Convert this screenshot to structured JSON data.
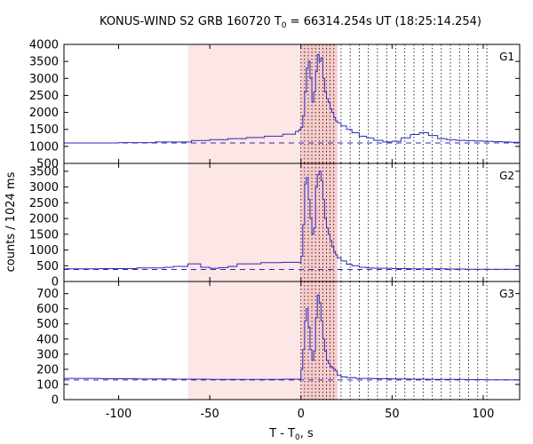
{
  "chart_data": {
    "type": "line",
    "title": {
      "prefix": "KONUS-WIND S2 GRB 160720 T",
      "sub": "0",
      "suffix": " = 66314.254s UT (18:25:14.254)"
    },
    "xlabel": {
      "prefix": "T - T",
      "sub": "0",
      "suffix": ", s"
    },
    "ylabel": "counts / 1024 ms",
    "xlim": [
      -130,
      120
    ],
    "xticks": [
      -100,
      -50,
      0,
      50,
      100
    ],
    "shaded_intervals": [
      {
        "from": -62,
        "to": 0,
        "color": "#fde6e6"
      },
      {
        "from": 0,
        "to": 20,
        "color": "#f9cccc"
      }
    ],
    "vlines": [
      0,
      2,
      4,
      6,
      8,
      10,
      12,
      14,
      16,
      18,
      22,
      27,
      32,
      37,
      42,
      47,
      52,
      57,
      62,
      67,
      72,
      77,
      82,
      87,
      92,
      97,
      102
    ],
    "panels": [
      {
        "label": "G1",
        "ylim": [
          500,
          4000
        ],
        "yticks": [
          500,
          1000,
          1500,
          2000,
          2500,
          3000,
          3500,
          4000
        ],
        "background": 1100,
        "x": [
          -130,
          -100,
          -80,
          -60,
          -50,
          -40,
          -30,
          -20,
          -10,
          -3,
          -1,
          0,
          1,
          2,
          3,
          4,
          5,
          6,
          7,
          8,
          9,
          10,
          11,
          12,
          13,
          14,
          15,
          16,
          17,
          18,
          19,
          20,
          22,
          25,
          28,
          32,
          36,
          40,
          45,
          50,
          55,
          60,
          65,
          70,
          75,
          80,
          85,
          90,
          95,
          100,
          105,
          110,
          115,
          120
        ],
        "values": [
          1100,
          1110,
          1130,
          1170,
          1200,
          1230,
          1260,
          1300,
          1360,
          1440,
          1500,
          1560,
          1900,
          2600,
          3300,
          3500,
          3000,
          2300,
          2600,
          3200,
          3700,
          3500,
          3600,
          3000,
          2600,
          2400,
          2300,
          2100,
          2000,
          1850,
          1750,
          1700,
          1600,
          1500,
          1400,
          1300,
          1250,
          1180,
          1130,
          1150,
          1250,
          1350,
          1400,
          1320,
          1230,
          1200,
          1180,
          1170,
          1160,
          1150,
          1140,
          1130,
          1120,
          1110
        ]
      },
      {
        "label": "G2",
        "ylim": [
          0,
          3750
        ],
        "yticks": [
          0,
          500,
          1000,
          1500,
          2000,
          2500,
          3000,
          3500
        ],
        "background": 380,
        "x": [
          -130,
          -110,
          -90,
          -75,
          -70,
          -62,
          -55,
          -50,
          -45,
          -40,
          -35,
          -22,
          -10,
          -1,
          0,
          1,
          2,
          3,
          4,
          5,
          6,
          7,
          8,
          9,
          10,
          11,
          12,
          13,
          14,
          15,
          16,
          17,
          18,
          19,
          20,
          22,
          25,
          28,
          32,
          36,
          40,
          50,
          60,
          70,
          80,
          90,
          100,
          110,
          120
        ],
        "values": [
          400,
          410,
          430,
          450,
          480,
          560,
          450,
          420,
          440,
          480,
          560,
          600,
          610,
          600,
          800,
          1800,
          3100,
          3300,
          2600,
          2000,
          1500,
          1700,
          3000,
          3400,
          3500,
          3200,
          2600,
          2000,
          1700,
          1500,
          1300,
          1100,
          950,
          850,
          750,
          650,
          550,
          500,
          450,
          430,
          420,
          410,
          400,
          400,
          395,
          390,
          390,
          385,
          380
        ]
      },
      {
        "label": "G3",
        "ylim": [
          0,
          780
        ],
        "yticks": [
          0,
          100,
          200,
          300,
          400,
          500,
          600,
          700
        ],
        "background": 130,
        "x": [
          -130,
          -110,
          -90,
          -70,
          -50,
          -30,
          -10,
          -1,
          0,
          1,
          2,
          3,
          4,
          5,
          6,
          7,
          8,
          9,
          10,
          11,
          12,
          13,
          14,
          15,
          16,
          17,
          18,
          19,
          20,
          22,
          25,
          30,
          40,
          50,
          60,
          70,
          80,
          90,
          100,
          110,
          120
        ],
        "values": [
          140,
          138,
          136,
          135,
          134,
          134,
          135,
          135,
          200,
          330,
          520,
          600,
          480,
          330,
          260,
          320,
          540,
          690,
          640,
          520,
          400,
          320,
          260,
          240,
          220,
          210,
          200,
          190,
          160,
          150,
          145,
          140,
          138,
          136,
          135,
          134,
          133,
          132,
          131,
          130,
          130
        ]
      }
    ]
  }
}
